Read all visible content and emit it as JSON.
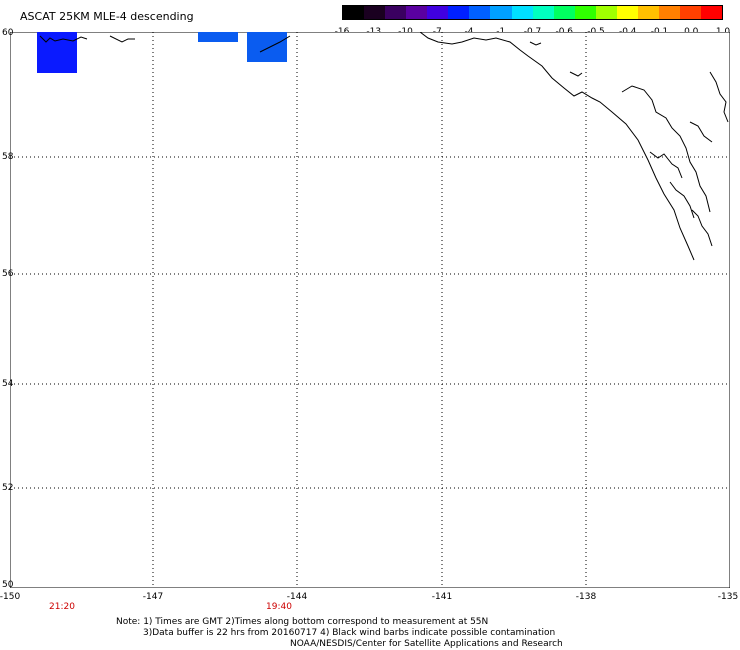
{
  "title": "ASCAT 25KM MLE-4 descending",
  "colorbar": {
    "labels": [
      "-16",
      "-13",
      "-10",
      "-7",
      "-4",
      "-1",
      "-0.7",
      "-0.6",
      "-0.5",
      "-0.4",
      "-0.1",
      "0.0",
      "1.0"
    ],
    "colors": [
      "#000000",
      "#1a0020",
      "#3a0060",
      "#5a00a0",
      "#4000e0",
      "#0020ff",
      "#0060ff",
      "#00a0ff",
      "#00e0ff",
      "#00ffc0",
      "#00ff60",
      "#30ff00",
      "#a0ff00",
      "#ffff00",
      "#ffc000",
      "#ff8000",
      "#ff4000",
      "#ff0000"
    ]
  },
  "axes": {
    "lat_labels": [
      "60",
      "58",
      "56",
      "54",
      "52",
      "50"
    ],
    "lon_labels": [
      "-150",
      "-147",
      "-144",
      "-141",
      "-138",
      "-135"
    ]
  },
  "times": [
    "21:20",
    "19:40"
  ],
  "notes": [
    "Note: 1) Times are GMT 2)Times along bottom correspond to measurement at 55N",
    "3)Data buffer is 22 hrs from 20160717 4) Black wind barbs indicate possible contamination",
    "NOAA/NESDIS/Center for Satellite Applications and Research"
  ],
  "colors": {
    "patch_dark_blue": "#0a1aff",
    "patch_light_blue": "#0a5cf0",
    "time_label": "#cc0000",
    "grid": "#000000"
  }
}
